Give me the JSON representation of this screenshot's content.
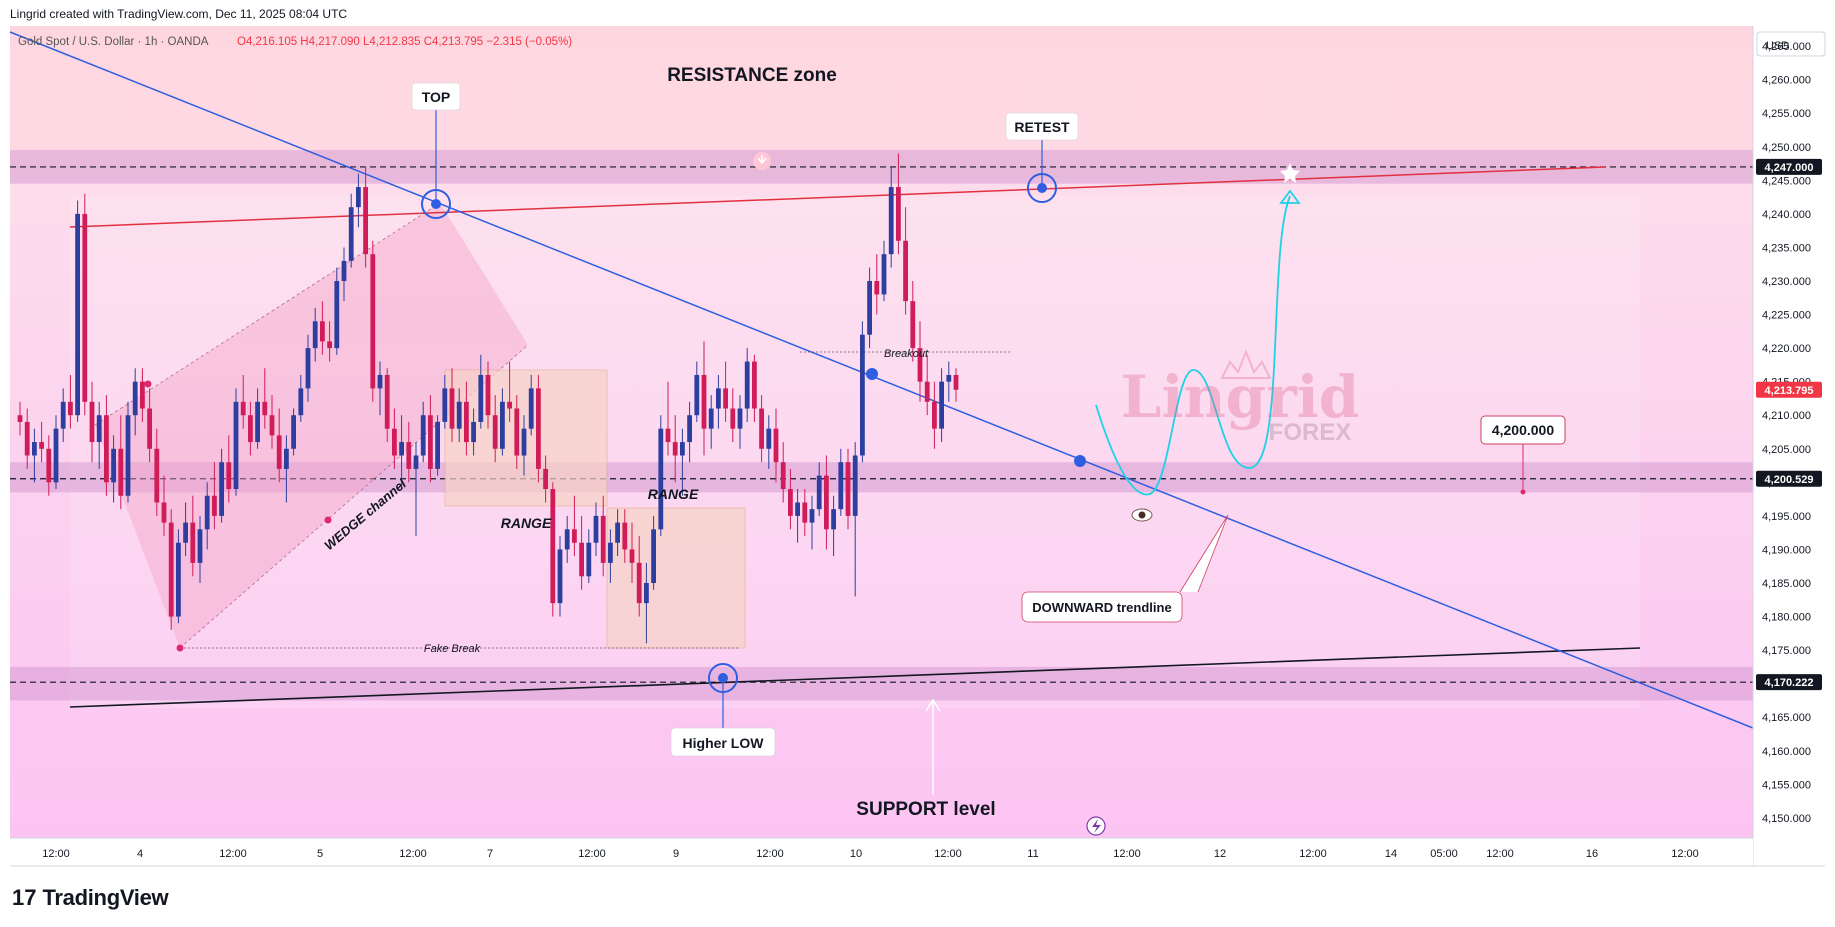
{
  "header": {
    "created_by": "Lingrid created with TradingView.com, Dec 11, 2025 08:04 UTC"
  },
  "symbol_line": {
    "name": "Gold Spot / U.S. Dollar · 1h · OANDA",
    "ohlc": "O4,216.105  H4,217.090  L4,212.835  C4,213.795  −2.315 (−0.05%)"
  },
  "currency": "USD",
  "branding": {
    "logo_word": "TradingView",
    "logo_mark": "17",
    "watermark_main": "Lingrid",
    "watermark_sub": "FOREX"
  },
  "annotations": {
    "resistance": "RESISTANCE zone",
    "support": "SUPPORT level",
    "top": "TOP",
    "retest": "RETEST",
    "higher_low": "Higher LOW",
    "range1": "RANGE",
    "range2": "RANGE",
    "wedge": "WEDGE channel",
    "fake_break": "Fake Break",
    "breakout": "Breakout",
    "downward": "DOWNWARD trendline",
    "target_label": "4,200.000"
  },
  "chart_data": {
    "type": "candlestick",
    "title": "Gold Spot / U.S. Dollar · 1h · OANDA",
    "y_ticks": [
      4150,
      4155,
      4160,
      4165,
      4170,
      4175,
      4180,
      4185,
      4190,
      4195,
      4200,
      4205,
      4210,
      4215,
      4220,
      4225,
      4230,
      4235,
      4240,
      4245,
      4250,
      4255,
      4260,
      4265
    ],
    "y_tick_labels": [
      "4,150.000",
      "4,155.000",
      "4,160.000",
      "4,165.000",
      "4,170.000",
      "4,175.000",
      "4,180.000",
      "4,185.000",
      "4,190.000",
      "4,195.000",
      "4,200.000",
      "4,205.000",
      "4,210.000",
      "4,215.000",
      "4,220.000",
      "4,225.000",
      "4,230.000",
      "4,235.000",
      "4,240.000",
      "4,245.000",
      "4,250.000",
      "4,255.000",
      "4,260.000",
      "4,265.000"
    ],
    "ylim": [
      4147,
      4268
    ],
    "x_tick_labels": [
      "12:00",
      "4",
      "12:00",
      "5",
      "12:00",
      "7",
      "12:00",
      "9",
      "12:00",
      "10",
      "12:00",
      "11",
      "12:00",
      "12",
      "12:00",
      "14",
      "05:00",
      "12:00",
      "16",
      "12:00"
    ],
    "price_tags": [
      {
        "value": "4,247.000",
        "price": 4247.0,
        "color": "#131722"
      },
      {
        "value": "4,213.795",
        "price": 4213.795,
        "color": "#f23645"
      },
      {
        "value": "4,200.529",
        "price": 4200.529,
        "color": "#131722"
      },
      {
        "value": "4,170.222",
        "price": 4170.222,
        "color": "#131722"
      }
    ],
    "zones": [
      {
        "name": "resistance",
        "from": 4244.5,
        "to": 4249.5,
        "price": 4247.0
      },
      {
        "name": "mid",
        "from": 4198.5,
        "to": 4203.0,
        "price": 4200.529
      },
      {
        "name": "support",
        "from": 4167.5,
        "to": 4172.5,
        "price": 4170.222
      }
    ],
    "candles": [
      [
        4210,
        4212,
        4207,
        4209
      ],
      [
        4209,
        4211,
        4202,
        4204
      ],
      [
        4204,
        4208,
        4200,
        4206
      ],
      [
        4206,
        4209,
        4203,
        4205
      ],
      [
        4205,
        4207,
        4198,
        4200
      ],
      [
        4200,
        4210,
        4199,
        4208
      ],
      [
        4208,
        4214,
        4206,
        4212
      ],
      [
        4212,
        4216,
        4208,
        4210
      ],
      [
        4210,
        4242,
        4209,
        4240
      ],
      [
        4240,
        4243,
        4210,
        4212
      ],
      [
        4212,
        4215,
        4203,
        4206
      ],
      [
        4206,
        4212,
        4202,
        4210
      ],
      [
        4210,
        4213,
        4198,
        4200
      ],
      [
        4200,
        4207,
        4197,
        4205
      ],
      [
        4205,
        4210,
        4196,
        4198
      ],
      [
        4198,
        4212,
        4197,
        4210
      ],
      [
        4210,
        4217,
        4207,
        4215
      ],
      [
        4215,
        4217,
        4209,
        4211
      ],
      [
        4211,
        4214,
        4203,
        4205
      ],
      [
        4205,
        4208,
        4195,
        4197
      ],
      [
        4197,
        4201,
        4192,
        4194
      ],
      [
        4194,
        4196,
        4178,
        4180
      ],
      [
        4180,
        4193,
        4179,
        4191
      ],
      [
        4191,
        4197,
        4189,
        4194
      ],
      [
        4194,
        4198,
        4186,
        4188
      ],
      [
        4188,
        4195,
        4185,
        4193
      ],
      [
        4193,
        4200,
        4190,
        4198
      ],
      [
        4198,
        4203,
        4193,
        4195
      ],
      [
        4195,
        4205,
        4194,
        4203
      ],
      [
        4203,
        4207,
        4197,
        4199
      ],
      [
        4199,
        4214,
        4198,
        4212
      ],
      [
        4212,
        4216,
        4208,
        4210
      ],
      [
        4210,
        4212,
        4204,
        4206
      ],
      [
        4206,
        4214,
        4205,
        4212
      ],
      [
        4212,
        4217,
        4208,
        4210
      ],
      [
        4210,
        4213,
        4205,
        4207
      ],
      [
        4207,
        4211,
        4200,
        4202
      ],
      [
        4202,
        4207,
        4197,
        4205
      ],
      [
        4205,
        4211,
        4204,
        4210
      ],
      [
        4210,
        4216,
        4209,
        4214
      ],
      [
        4214,
        4222,
        4212,
        4220
      ],
      [
        4220,
        4226,
        4218,
        4224
      ],
      [
        4224,
        4227,
        4219,
        4221
      ],
      [
        4221,
        4224,
        4218,
        4220
      ],
      [
        4220,
        4232,
        4219,
        4230
      ],
      [
        4230,
        4235,
        4227,
        4233
      ],
      [
        4233,
        4243,
        4232,
        4241
      ],
      [
        4241,
        4246,
        4238,
        4244
      ],
      [
        4244,
        4247,
        4232,
        4234
      ],
      [
        4234,
        4236,
        4212,
        4214
      ],
      [
        4214,
        4218,
        4210,
        4216
      ],
      [
        4216,
        4217,
        4206,
        4208
      ],
      [
        4208,
        4211,
        4202,
        4204
      ],
      [
        4204,
        4210,
        4199,
        4206
      ],
      [
        4206,
        4209,
        4200,
        4202
      ],
      [
        4202,
        4206,
        4192,
        4204
      ],
      [
        4204,
        4212,
        4203,
        4210
      ],
      [
        4210,
        4213,
        4200,
        4202
      ],
      [
        4202,
        4210,
        4201,
        4209
      ],
      [
        4209,
        4216,
        4208,
        4214
      ],
      [
        4214,
        4217,
        4206,
        4208
      ],
      [
        4208,
        4214,
        4206,
        4212
      ],
      [
        4212,
        4215,
        4204,
        4206
      ],
      [
        4206,
        4211,
        4204,
        4209
      ],
      [
        4209,
        4219,
        4208,
        4216
      ],
      [
        4216,
        4218,
        4208,
        4210
      ],
      [
        4210,
        4213,
        4203,
        4205
      ],
      [
        4205,
        4214,
        4204,
        4212
      ],
      [
        4212,
        4218,
        4209,
        4211
      ],
      [
        4211,
        4213,
        4202,
        4204
      ],
      [
        4204,
        4210,
        4201,
        4208
      ],
      [
        4208,
        4216,
        4207,
        4214
      ],
      [
        4214,
        4216,
        4200,
        4202
      ],
      [
        4202,
        4204,
        4197,
        4199
      ],
      [
        4199,
        4200,
        4180,
        4182
      ],
      [
        4182,
        4192,
        4180,
        4190
      ],
      [
        4190,
        4195,
        4188,
        4193
      ],
      [
        4193,
        4198,
        4189,
        4191
      ],
      [
        4191,
        4195,
        4184,
        4186
      ],
      [
        4186,
        4193,
        4185,
        4191
      ],
      [
        4191,
        4197,
        4189,
        4195
      ],
      [
        4195,
        4198,
        4186,
        4188
      ],
      [
        4188,
        4193,
        4185,
        4191
      ],
      [
        4191,
        4196,
        4189,
        4194
      ],
      [
        4194,
        4196,
        4188,
        4190
      ],
      [
        4190,
        4194,
        4185,
        4188
      ],
      [
        4188,
        4192,
        4180,
        4182
      ],
      [
        4182,
        4188,
        4176,
        4185
      ],
      [
        4185,
        4195,
        4184,
        4193
      ],
      [
        4193,
        4210,
        4192,
        4208
      ],
      [
        4208,
        4215,
        4204,
        4206
      ],
      [
        4206,
        4210,
        4200,
        4204
      ],
      [
        4204,
        4208,
        4198,
        4206
      ],
      [
        4206,
        4212,
        4203,
        4210
      ],
      [
        4210,
        4218,
        4209,
        4216
      ],
      [
        4216,
        4221,
        4204,
        4208
      ],
      [
        4208,
        4213,
        4205,
        4211
      ],
      [
        4211,
        4216,
        4208,
        4214
      ],
      [
        4214,
        4218,
        4209,
        4211
      ],
      [
        4211,
        4214,
        4206,
        4208
      ],
      [
        4208,
        4213,
        4205,
        4211
      ],
      [
        4211,
        4220,
        4209,
        4218
      ],
      [
        4218,
        4219,
        4209,
        4211
      ],
      [
        4211,
        4213,
        4203,
        4205
      ],
      [
        4205,
        4210,
        4202,
        4208
      ],
      [
        4208,
        4211,
        4200,
        4203
      ],
      [
        4203,
        4206,
        4197,
        4199
      ],
      [
        4199,
        4202,
        4193,
        4195
      ],
      [
        4195,
        4199,
        4191,
        4197
      ],
      [
        4197,
        4199,
        4192,
        4194
      ],
      [
        4194,
        4198,
        4190,
        4196
      ],
      [
        4196,
        4203,
        4195,
        4201
      ],
      [
        4201,
        4204,
        4190,
        4193
      ],
      [
        4193,
        4198,
        4189,
        4196
      ],
      [
        4196,
        4205,
        4195,
        4203
      ],
      [
        4203,
        4205,
        4193,
        4195
      ],
      [
        4195,
        4206,
        4183,
        4204
      ],
      [
        4204,
        4224,
        4203,
        4222
      ],
      [
        4222,
        4232,
        4220,
        4230
      ],
      [
        4230,
        4234,
        4225,
        4228
      ],
      [
        4228,
        4236,
        4227,
        4234
      ],
      [
        4234,
        4247,
        4232,
        4244
      ],
      [
        4244,
        4249,
        4234,
        4236
      ],
      [
        4236,
        4241,
        4225,
        4227
      ],
      [
        4227,
        4230,
        4218,
        4220
      ],
      [
        4220,
        4224,
        4212,
        4215
      ],
      [
        4215,
        4219,
        4210,
        4212
      ],
      [
        4212,
        4215,
        4205,
        4208
      ],
      [
        4208,
        4217,
        4206,
        4215
      ],
      [
        4215,
        4218,
        4212,
        4216
      ],
      [
        4216,
        4217,
        4212,
        4213.795
      ]
    ]
  }
}
